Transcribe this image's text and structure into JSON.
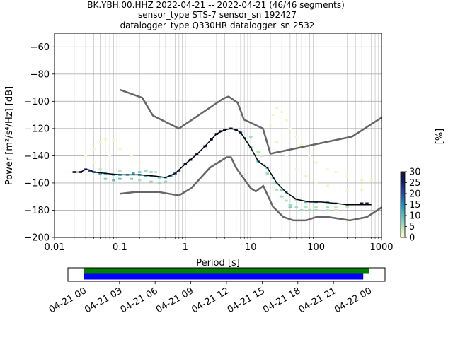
{
  "title_lines": [
    "BK.YBH.00.HHZ   2022-04-21 -- 2022-04-21  (46/46 segments)",
    "sensor_type STS-7 sensor_sn 192427",
    "datalogger_type Q330HR datalogger_sn 2532"
  ],
  "chart_data": [
    {
      "type": "heatmap",
      "subtype": "probabilistic-power-spectral-density",
      "xlabel": "Period [s]",
      "ylabel": "Power [m²/s⁴/Hz] [dB]",
      "xscale": "log",
      "xlim": [
        0.01,
        1000
      ],
      "ylim": [
        -200,
        -50
      ],
      "x_ticks": [
        {
          "value": 0.01,
          "label": "0.01"
        },
        {
          "value": 0.1,
          "label": "0.1"
        },
        {
          "value": 1,
          "label": "1"
        },
        {
          "value": 10,
          "label": "10"
        },
        {
          "value": 100,
          "label": "100"
        },
        {
          "value": 1000,
          "label": "1000"
        }
      ],
      "y_ticks": [
        {
          "value": -60,
          "label": "−60"
        },
        {
          "value": -80,
          "label": "−80"
        },
        {
          "value": -100,
          "label": "−100"
        },
        {
          "value": -120,
          "label": "−120"
        },
        {
          "value": -140,
          "label": "−140"
        },
        {
          "value": -160,
          "label": "−160"
        },
        {
          "value": -180,
          "label": "−180"
        },
        {
          "value": -200,
          "label": "−200"
        }
      ],
      "grid": true,
      "colorbar": {
        "label": "[%]",
        "range": [
          0,
          30
        ],
        "ticks": [
          0,
          5,
          10,
          15,
          20,
          25,
          30
        ],
        "colormap": "pqlx",
        "colors": [
          "#ffffcc",
          "#c7e9b4",
          "#7fcdbb",
          "#41b6c4",
          "#1d91c0",
          "#225ea8",
          "#253494",
          "#081d58",
          "#2d0a3a"
        ]
      },
      "series": [
        {
          "name": "",
          "role": "high-noise-model",
          "color": "#666666",
          "points": [
            [
              0.1,
              -91.5
            ],
            [
              0.22,
              -97.4
            ],
            [
              0.32,
              -110.5
            ],
            [
              0.8,
              -120
            ],
            [
              3.8,
              -98
            ],
            [
              4.6,
              -96.5
            ],
            [
              6.3,
              -101
            ],
            [
              7.9,
              -113.5
            ],
            [
              15.4,
              -120
            ],
            [
              20,
              -138.5
            ],
            [
              354,
              -126
            ],
            [
              1000,
              -112
            ]
          ]
        },
        {
          "name": "",
          "role": "low-noise-model",
          "color": "#666666",
          "points": [
            [
              0.1,
              -168
            ],
            [
              0.17,
              -166.7
            ],
            [
              0.4,
              -166.7
            ],
            [
              0.8,
              -169.2
            ],
            [
              1.24,
              -163.7
            ],
            [
              2.4,
              -148.6
            ],
            [
              4.3,
              -141.1
            ],
            [
              5.0,
              -141.1
            ],
            [
              6.0,
              -149
            ],
            [
              10,
              -163.8
            ],
            [
              12,
              -166.2
            ],
            [
              15.6,
              -162.1
            ],
            [
              21.9,
              -177.5
            ],
            [
              31.6,
              -185
            ],
            [
              45,
              -187.5
            ],
            [
              70,
              -187.5
            ],
            [
              101,
              -185
            ],
            [
              154,
              -185
            ],
            [
              328,
              -187.5
            ],
            [
              600,
              -185
            ],
            [
              1000,
              -178
            ]
          ]
        },
        {
          "name": "",
          "role": "mode",
          "color": "#000000",
          "points": [
            [
              0.02,
              -152
            ],
            [
              0.025,
              -152
            ],
            [
              0.03,
              -150
            ],
            [
              0.035,
              -150.5
            ],
            [
              0.04,
              -152
            ],
            [
              0.06,
              -153
            ],
            [
              0.1,
              -154
            ],
            [
              0.2,
              -154
            ],
            [
              0.35,
              -155
            ],
            [
              0.5,
              -156
            ],
            [
              0.7,
              -153
            ],
            [
              1.0,
              -146
            ],
            [
              1.5,
              -139
            ],
            [
              2.0,
              -133
            ],
            [
              3.0,
              -124
            ],
            [
              4.0,
              -121
            ],
            [
              5.0,
              -120
            ],
            [
              6.0,
              -121
            ],
            [
              7.0,
              -123
            ],
            [
              10,
              -134
            ],
            [
              13,
              -144
            ],
            [
              18,
              -149
            ],
            [
              25,
              -160
            ],
            [
              35,
              -167
            ],
            [
              50,
              -172
            ],
            [
              80,
              -174
            ],
            [
              120,
              -174
            ],
            [
              200,
              -175
            ],
            [
              300,
              -176
            ],
            [
              500,
              -176
            ],
            [
              700,
              -176
            ]
          ]
        }
      ],
      "density_cells": [
        [
          0.02,
          -152,
          30
        ],
        [
          0.025,
          -152,
          28
        ],
        [
          0.03,
          -150,
          22
        ],
        [
          0.035,
          -151,
          20
        ],
        [
          0.04,
          -152,
          18
        ],
        [
          0.05,
          -153,
          14
        ],
        [
          0.06,
          -153,
          12
        ],
        [
          0.08,
          -154,
          12
        ],
        [
          0.1,
          -154,
          14
        ],
        [
          0.13,
          -154,
          12
        ],
        [
          0.16,
          -153,
          14
        ],
        [
          0.2,
          -154,
          14
        ],
        [
          0.25,
          -155,
          12
        ],
        [
          0.3,
          -155,
          10
        ],
        [
          0.4,
          -156,
          10
        ],
        [
          0.5,
          -156,
          12
        ],
        [
          0.6,
          -155,
          14
        ],
        [
          0.7,
          -153,
          18
        ],
        [
          0.8,
          -151,
          22
        ],
        [
          1.0,
          -146,
          26
        ],
        [
          1.2,
          -143,
          28
        ],
        [
          1.5,
          -139,
          30
        ],
        [
          2.0,
          -133,
          30
        ],
        [
          2.5,
          -128,
          30
        ],
        [
          3.0,
          -124,
          30
        ],
        [
          3.5,
          -122,
          30
        ],
        [
          4.0,
          -121,
          28
        ],
        [
          5.0,
          -120,
          26
        ],
        [
          6.0,
          -121,
          24
        ],
        [
          7.0,
          -123,
          20
        ],
        [
          8.0,
          -127,
          16
        ],
        [
          10,
          -134,
          14
        ],
        [
          13,
          -144,
          12
        ],
        [
          16,
          -147,
          10
        ],
        [
          18,
          -149,
          10
        ],
        [
          22,
          -156,
          8
        ],
        [
          25,
          -160,
          8
        ],
        [
          30,
          -165,
          8
        ],
        [
          35,
          -167,
          10
        ],
        [
          50,
          -172,
          10
        ],
        [
          70,
          -174,
          10
        ],
        [
          100,
          -174,
          12
        ],
        [
          150,
          -174,
          12
        ],
        [
          200,
          -175,
          12
        ],
        [
          300,
          -176,
          12
        ],
        [
          500,
          -175,
          30
        ],
        [
          600,
          -175,
          30
        ],
        [
          0.06,
          -157,
          8
        ],
        [
          0.08,
          -158,
          10
        ],
        [
          0.1,
          -157,
          10
        ],
        [
          0.15,
          -157,
          8
        ],
        [
          0.2,
          -152,
          8
        ],
        [
          0.25,
          -151,
          6
        ],
        [
          0.3,
          -152,
          6
        ],
        [
          0.4,
          -160,
          6
        ],
        [
          0.5,
          -159,
          6
        ],
        [
          0.05,
          -150,
          4
        ],
        [
          0.1,
          -151,
          5
        ],
        [
          0.2,
          -158,
          5
        ],
        [
          0.3,
          -159,
          6
        ],
        [
          0.35,
          -152,
          4
        ],
        [
          10,
          -126,
          6
        ],
        [
          13,
          -137,
          5
        ],
        [
          15,
          -140,
          4
        ],
        [
          18,
          -153,
          6
        ],
        [
          22,
          -160,
          5
        ],
        [
          25,
          -165,
          5
        ],
        [
          30,
          -170,
          6
        ],
        [
          35,
          -173,
          5
        ],
        [
          40,
          -176,
          6
        ],
        [
          50,
          -178,
          6
        ],
        [
          70,
          -178,
          5
        ],
        [
          100,
          -178,
          5
        ],
        [
          150,
          -178,
          6
        ],
        [
          200,
          -178,
          4
        ],
        [
          300,
          -178,
          4
        ],
        [
          40,
          -178,
          8
        ],
        [
          60,
          -180,
          6
        ],
        [
          80,
          -180,
          6
        ],
        [
          100,
          -180,
          6
        ],
        [
          150,
          -180,
          5
        ],
        [
          200,
          -180,
          4
        ],
        [
          20,
          -118,
          1
        ],
        [
          22,
          -110,
          1
        ],
        [
          25,
          -105,
          1
        ],
        [
          30,
          -108,
          1
        ],
        [
          35,
          -114,
          1
        ],
        [
          40,
          -120,
          1
        ],
        [
          50,
          -126,
          1
        ],
        [
          60,
          -132,
          1
        ],
        [
          80,
          -140,
          1
        ],
        [
          100,
          -145,
          1
        ],
        [
          150,
          -150,
          1
        ],
        [
          200,
          -152,
          1
        ],
        [
          300,
          -155,
          1
        ],
        [
          500,
          -158,
          1
        ],
        [
          700,
          -158,
          1
        ],
        [
          25,
          -130,
          1
        ],
        [
          35,
          -140,
          1
        ],
        [
          50,
          -150,
          1
        ],
        [
          70,
          -155,
          1
        ],
        [
          100,
          -160,
          1
        ],
        [
          150,
          -162,
          1
        ],
        [
          300,
          -165,
          1
        ],
        [
          500,
          -165,
          1
        ],
        [
          0.03,
          -140,
          1
        ],
        [
          0.04,
          -135,
          1
        ],
        [
          0.05,
          -130,
          1
        ],
        [
          0.06,
          -128,
          1
        ],
        [
          0.08,
          -128,
          1
        ],
        [
          0.1,
          -135,
          1
        ],
        [
          0.15,
          -140,
          1
        ],
        [
          0.2,
          -145,
          1
        ],
        [
          0.04,
          -145,
          1
        ],
        [
          0.07,
          -140,
          1
        ]
      ]
    },
    {
      "type": "timeline",
      "role": "data-coverage",
      "xlim": [
        "2022-04-20T22:40",
        "2022-04-22T01:20"
      ],
      "tick_labels": [
        "04-21 00",
        "04-21 03",
        "04-21 06",
        "04-21 09",
        "04-21 12",
        "04-21 15",
        "04-21 18",
        "04-21 21",
        "04-22 00"
      ],
      "tick_values": [
        "2022-04-21T00:00",
        "2022-04-21T03:00",
        "2022-04-21T06:00",
        "2022-04-21T09:00",
        "2022-04-21T12:00",
        "2022-04-21T15:00",
        "2022-04-21T18:00",
        "2022-04-21T21:00",
        "2022-04-22T00:00"
      ],
      "bars": [
        {
          "role": "data",
          "color": "#008000",
          "start": "2022-04-21T00:00",
          "end": "2022-04-21T23:59"
        },
        {
          "role": "psd-segments",
          "color": "#0000ff",
          "start": "2022-04-21T00:00",
          "end": "2022-04-21T23:30"
        }
      ]
    }
  ]
}
